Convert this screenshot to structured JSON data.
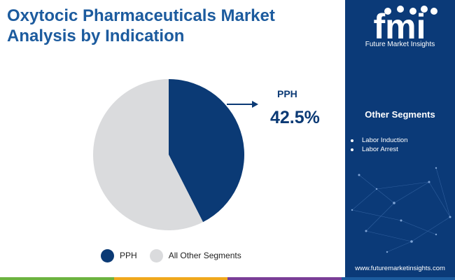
{
  "title": "Oxytocic Pharmaceuticals Market Analysis by Indication",
  "chart_data": {
    "type": "pie",
    "slices": [
      {
        "label": "PPH",
        "value": 42.5,
        "color": "#0b3a75"
      },
      {
        "label": "All Other Segments",
        "value": 57.5,
        "color": "#dadbdd"
      }
    ],
    "callout": {
      "label": "PPH",
      "value": "42.5%"
    },
    "legend": {
      "placement": "bottom"
    }
  },
  "sidebar": {
    "logo_text": "fmi",
    "brand": "Future Market Insights",
    "segments_title": "Other Segments",
    "segments": [
      "Labor Induction",
      "Labor Arrest"
    ],
    "website": "www.futuremarketinsights.com"
  },
  "colors": {
    "sidebar_bg": "#0b3a78",
    "title": "#1c5b9e",
    "bottom_bar": [
      "#6cb33f",
      "#f0a81c",
      "#7a3d97",
      "#1c5b9e"
    ]
  }
}
